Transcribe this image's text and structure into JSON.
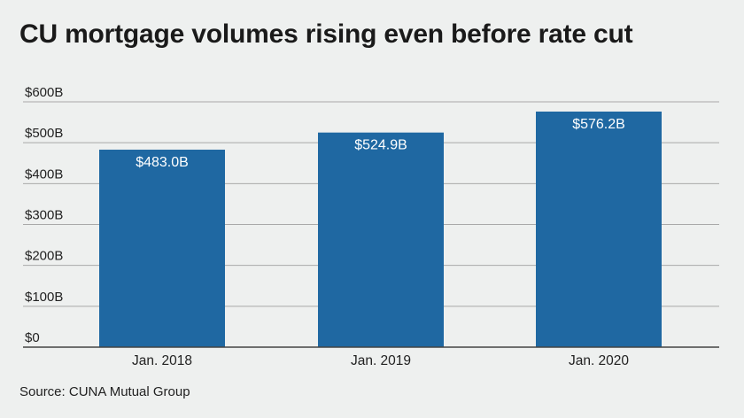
{
  "title": "CU mortgage volumes rising even before rate cut",
  "source": "Source: CUNA Mutual Group",
  "colors": {
    "bar": "#1f68a2",
    "grid": "#a9a9a9",
    "axis": "#444444",
    "background": "#eef0ef"
  },
  "chart_data": {
    "type": "bar",
    "title": "CU mortgage volumes rising even before rate cut",
    "categories": [
      "Jan. 2018",
      "Jan. 2019",
      "Jan. 2020"
    ],
    "values": [
      483.0,
      524.9,
      576.2
    ],
    "data_labels": [
      "$483.0B",
      "$524.9B",
      "$576.2B"
    ],
    "y_ticks": [
      0,
      100,
      200,
      300,
      400,
      500,
      600
    ],
    "y_tick_labels": [
      "$0",
      "$100B",
      "$200B",
      "$300B",
      "$400B",
      "$500B",
      "$600B"
    ],
    "ylim": [
      0,
      600
    ],
    "xlabel": "",
    "ylabel": "",
    "grid": true,
    "legend": "none"
  }
}
